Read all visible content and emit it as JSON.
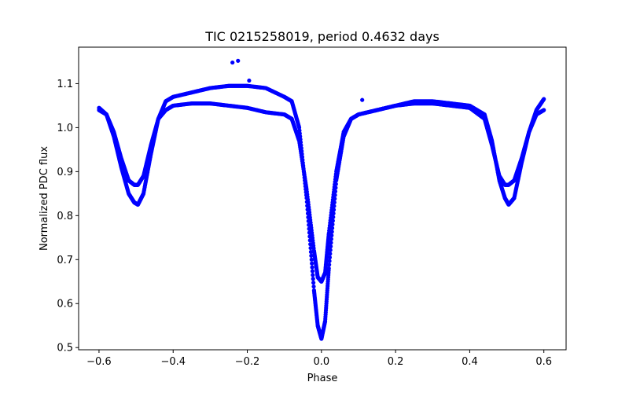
{
  "chart_data": {
    "type": "scatter",
    "title": "TIC 0215258019, period 0.4632 days",
    "xlabel": "Phase",
    "ylabel": "Normalized PDC flux",
    "xlim": [
      -0.655,
      0.66
    ],
    "ylim": [
      0.495,
      1.183
    ],
    "xticks": [
      -0.6,
      -0.4,
      -0.2,
      0.0,
      0.2,
      0.4,
      0.6
    ],
    "xtick_labels": [
      "−0.6",
      "−0.4",
      "−0.2",
      "0.0",
      "0.2",
      "0.4",
      "0.6"
    ],
    "yticks": [
      0.5,
      0.6,
      0.7,
      0.8,
      0.9,
      1.0,
      1.1
    ],
    "ytick_labels": [
      "0.5",
      "0.6",
      "0.7",
      "0.8",
      "0.9",
      "1.0",
      "1.1"
    ],
    "grid": false,
    "legend": "none",
    "color": "#0000ff",
    "series": [
      {
        "x": [
          -0.6,
          -0.58,
          -0.56,
          -0.54,
          -0.52,
          -0.505,
          -0.495,
          -0.48,
          -0.46,
          -0.44,
          -0.42,
          -0.4,
          -0.35,
          -0.3,
          -0.25,
          -0.2,
          -0.15,
          -0.1,
          -0.08,
          -0.06,
          -0.04,
          -0.02,
          -0.01,
          0.0,
          0.01,
          0.02,
          0.04,
          0.06,
          0.08,
          0.1,
          0.15,
          0.2,
          0.25,
          0.3,
          0.35,
          0.4,
          0.44,
          0.46,
          0.48,
          0.495,
          0.505,
          0.52,
          0.54,
          0.56,
          0.58,
          0.6
        ],
        "y": [
          1.04,
          1.03,
          0.99,
          0.93,
          0.88,
          0.87,
          0.87,
          0.89,
          0.96,
          1.02,
          1.04,
          1.05,
          1.055,
          1.055,
          1.05,
          1.045,
          1.035,
          1.03,
          1.02,
          0.97,
          0.86,
          0.72,
          0.66,
          0.65,
          0.67,
          0.76,
          0.9,
          0.99,
          1.02,
          1.03,
          1.04,
          1.05,
          1.055,
          1.055,
          1.05,
          1.045,
          1.02,
          0.96,
          0.89,
          0.87,
          0.87,
          0.88,
          0.93,
          0.99,
          1.03,
          1.04
        ]
      },
      {
        "x": [
          -0.6,
          -0.58,
          -0.56,
          -0.54,
          -0.52,
          -0.505,
          -0.495,
          -0.48,
          -0.46,
          -0.44,
          -0.42,
          -0.4,
          -0.35,
          -0.3,
          -0.25,
          -0.2,
          -0.15,
          -0.1,
          -0.08,
          -0.06,
          -0.04,
          -0.02,
          -0.01,
          0.0,
          0.01,
          0.02,
          0.04,
          0.06,
          0.08,
          0.1,
          0.15,
          0.2,
          0.25,
          0.3,
          0.35,
          0.4,
          0.44,
          0.46,
          0.48,
          0.495,
          0.505,
          0.52,
          0.54,
          0.56,
          0.58,
          0.6
        ],
        "y": [
          1.045,
          1.03,
          0.98,
          0.91,
          0.85,
          0.83,
          0.825,
          0.85,
          0.94,
          1.02,
          1.06,
          1.07,
          1.08,
          1.09,
          1.095,
          1.095,
          1.09,
          1.07,
          1.06,
          1.0,
          0.84,
          0.63,
          0.55,
          0.52,
          0.56,
          0.68,
          0.88,
          0.98,
          1.02,
          1.03,
          1.04,
          1.05,
          1.06,
          1.06,
          1.055,
          1.05,
          1.03,
          0.97,
          0.88,
          0.84,
          0.825,
          0.84,
          0.92,
          0.99,
          1.04,
          1.065
        ]
      },
      {
        "x": [
          -0.24,
          -0.225,
          -0.195,
          0.11
        ],
        "y": [
          1.148,
          1.152,
          1.107,
          1.063
        ]
      }
    ]
  }
}
